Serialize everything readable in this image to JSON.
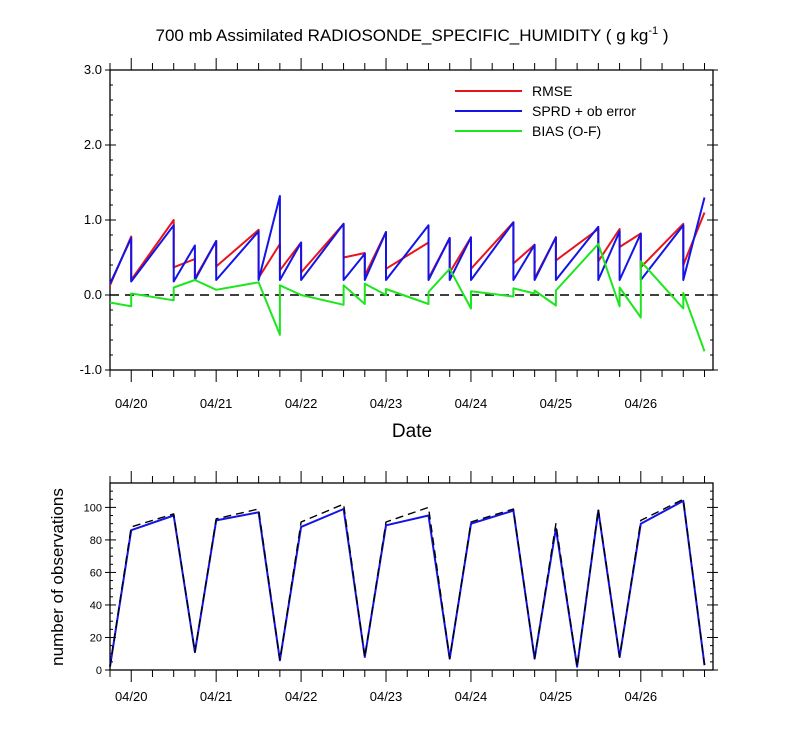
{
  "chart_data": [
    {
      "type": "line",
      "title": "700 mb Assimilated RADIOSONDE_SPECIFIC_HUMIDITY ( g kg",
      "title_superscript": "-1",
      "title_suffix": " )",
      "xlabel": "Date",
      "ylabel": "",
      "x_range": [
        0,
        7.1
      ],
      "ylim": [
        -1.0,
        3.0
      ],
      "yticks": [
        -1.0,
        0.0,
        1.0,
        2.0,
        3.0
      ],
      "ytick_labels": [
        "-1.0",
        "0.0",
        "1.0",
        "2.0",
        "3.0"
      ],
      "x_tick_positions": [
        0.25,
        1.25,
        2.25,
        3.25,
        4.25,
        5.25,
        6.25
      ],
      "x_tick_labels": [
        "04/20",
        "04/21",
        "04/22",
        "04/23",
        "04/24",
        "04/25",
        "04/26"
      ],
      "reference_line": 0.0,
      "legend": [
        "RMSE",
        "SPRD + ob error",
        "BIAS (O-F)"
      ],
      "colors": {
        "rmse": "#e8141c",
        "sprd": "#1414e6",
        "bias": "#1ee61e",
        "zero": "#000000"
      },
      "series": [
        {
          "name": "RMSE",
          "x": [
            0,
            0.25,
            0.25,
            0.75,
            0.75,
            1.0,
            1.0,
            1.25,
            1.25,
            1.75,
            1.75,
            2.0,
            2.0,
            2.25,
            2.25,
            2.75,
            2.75,
            3.0,
            3.0,
            3.25,
            3.25,
            3.75,
            3.75,
            4.0,
            4.0,
            4.25,
            4.25,
            4.75,
            4.75,
            5.0,
            5.0,
            5.25,
            5.25,
            5.75,
            5.75,
            6.0,
            6.0,
            6.25,
            6.25,
            6.75,
            6.75,
            7.0
          ],
          "y": [
            0.13,
            0.78,
            0.2,
            1.0,
            0.37,
            0.48,
            0.22,
            0.72,
            0.38,
            0.87,
            0.23,
            0.68,
            0.33,
            0.7,
            0.3,
            0.95,
            0.5,
            0.56,
            0.26,
            0.84,
            0.35,
            0.7,
            0.22,
            0.76,
            0.3,
            0.77,
            0.35,
            0.97,
            0.42,
            0.67,
            0.22,
            0.77,
            0.46,
            0.88,
            0.45,
            0.88,
            0.64,
            0.82,
            0.37,
            0.95,
            0.4,
            1.1
          ]
        },
        {
          "name": "SPRD + ob error",
          "x": [
            0,
            0.25,
            0.25,
            0.75,
            0.75,
            1.0,
            1.0,
            1.25,
            1.25,
            1.75,
            1.75,
            2.0,
            2.0,
            2.25,
            2.25,
            2.75,
            2.75,
            3.0,
            3.0,
            3.25,
            3.25,
            3.75,
            3.75,
            4.0,
            4.0,
            4.25,
            4.25,
            4.75,
            4.75,
            5.0,
            5.0,
            5.25,
            5.25,
            5.75,
            5.75,
            6.0,
            6.0,
            6.25,
            6.25,
            6.75,
            6.75,
            7.0
          ],
          "y": [
            0.15,
            0.76,
            0.18,
            0.93,
            0.18,
            0.66,
            0.2,
            0.72,
            0.2,
            0.85,
            0.2,
            1.32,
            0.2,
            0.7,
            0.2,
            0.95,
            0.2,
            0.55,
            0.2,
            0.84,
            0.2,
            0.93,
            0.2,
            0.76,
            0.2,
            0.77,
            0.2,
            0.97,
            0.2,
            0.67,
            0.2,
            0.77,
            0.2,
            0.91,
            0.2,
            0.85,
            0.2,
            0.82,
            0.2,
            0.93,
            0.2,
            1.3
          ]
        },
        {
          "name": "BIAS (O-F)",
          "x": [
            0,
            0.25,
            0.25,
            0.75,
            0.75,
            1.0,
            1.0,
            1.25,
            1.25,
            1.75,
            1.75,
            2.0,
            2.0,
            2.25,
            2.25,
            2.75,
            2.75,
            3.0,
            3.0,
            3.25,
            3.25,
            3.75,
            3.75,
            4.0,
            4.0,
            4.25,
            4.25,
            4.75,
            4.75,
            5.0,
            5.0,
            5.25,
            5.25,
            5.75,
            5.75,
            6.0,
            6.0,
            6.25,
            6.25,
            6.75,
            6.75,
            7.0
          ],
          "y": [
            -0.1,
            -0.15,
            0.02,
            -0.07,
            0.1,
            0.2,
            0.2,
            0.07,
            0.07,
            0.17,
            0.17,
            -0.53,
            0.13,
            0.0,
            0.0,
            -0.13,
            0.13,
            -0.12,
            0.15,
            0.0,
            0.08,
            -0.12,
            0.04,
            0.35,
            0.35,
            -0.18,
            0.05,
            -0.02,
            0.09,
            0.02,
            0.06,
            -0.14,
            0.06,
            0.68,
            0.68,
            -0.15,
            0.1,
            -0.3,
            0.45,
            -0.18,
            0.03,
            -0.75
          ]
        }
      ]
    },
    {
      "type": "line",
      "title": "",
      "xlabel": "",
      "ylabel": "number of observations",
      "x_range": [
        0,
        7.1
      ],
      "ylim": [
        0,
        115
      ],
      "yticks": [
        0,
        20,
        40,
        60,
        80,
        100
      ],
      "ytick_labels": [
        "0",
        "20",
        "40",
        "60",
        "80",
        "100"
      ],
      "x_tick_positions": [
        0.25,
        1.25,
        2.25,
        3.25,
        4.25,
        5.25,
        6.25
      ],
      "x_tick_labels": [
        "04/20",
        "04/21",
        "04/22",
        "04/23",
        "04/24",
        "04/25",
        "04/26"
      ],
      "colors": {
        "used": "#1414e6",
        "possible": "#000000"
      },
      "series": [
        {
          "name": "used",
          "x": [
            0,
            0.25,
            0.75,
            1.0,
            1.25,
            1.75,
            2.0,
            2.25,
            2.75,
            3.0,
            3.25,
            3.75,
            4.0,
            4.25,
            4.75,
            5.0,
            5.25,
            5.5,
            5.75,
            6.0,
            6.25,
            6.75,
            7.0
          ],
          "y": [
            2,
            86,
            95,
            11,
            92,
            97,
            6,
            88,
            99,
            8,
            89,
            95,
            7,
            90,
            98,
            7,
            87,
            2,
            98,
            8,
            90,
            104,
            3
          ]
        },
        {
          "name": "possible",
          "x": [
            0,
            0.25,
            0.75,
            1.0,
            1.25,
            1.75,
            2.0,
            2.25,
            2.75,
            3.0,
            3.25,
            3.75,
            4.0,
            4.25,
            4.75,
            5.0,
            5.25,
            5.5,
            5.75,
            6.0,
            6.25,
            6.75,
            7.0
          ],
          "y": [
            2,
            88,
            96,
            11,
            93,
            99,
            6,
            91,
            102,
            8,
            91,
            100,
            7,
            91,
            99,
            7,
            90,
            2,
            99,
            8,
            92,
            105,
            3
          ]
        }
      ]
    }
  ]
}
